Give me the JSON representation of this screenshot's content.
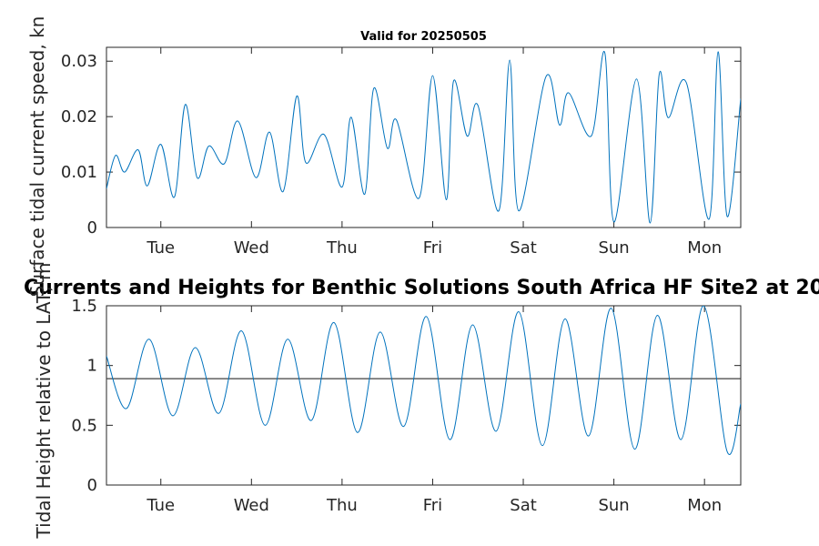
{
  "chart_data": [
    {
      "type": "line",
      "title": "Valid for 20250505",
      "ylabel": "Surface tidal current speed, kn",
      "ylim": [
        0,
        0.0325
      ],
      "xlim": [
        0,
        7
      ],
      "yticks": [
        0,
        0.01,
        0.02,
        0.03
      ],
      "ytick_labels": [
        "0",
        "0.01",
        "0.02",
        "0.03"
      ],
      "xticks": [
        0.6,
        1.6,
        2.6,
        3.6,
        4.6,
        5.6,
        6.6
      ],
      "xtick_labels": [
        "Tue",
        "Wed",
        "Thu",
        "Fri",
        "Sat",
        "Sun",
        "Mon"
      ],
      "series": [
        {
          "color": "#0072bd",
          "x": [
            0,
            0.1,
            0.2,
            0.35,
            0.45,
            0.6,
            0.75,
            0.87,
            1.0,
            1.13,
            1.3,
            1.45,
            1.65,
            1.8,
            1.95,
            2.1,
            2.2,
            2.4,
            2.6,
            2.7,
            2.85,
            2.95,
            3.1,
            3.2,
            3.45,
            3.6,
            3.75,
            3.83,
            3.98,
            4.1,
            4.33,
            4.45,
            4.55,
            4.85,
            5.0,
            5.1,
            5.35,
            5.5,
            5.6,
            5.85,
            6.0,
            6.1,
            6.2,
            6.4,
            6.65,
            6.75,
            6.85,
            7.0
          ],
          "y": [
            0.007,
            0.013,
            0.01,
            0.014,
            0.0075,
            0.015,
            0.0055,
            0.0222,
            0.009,
            0.0147,
            0.0115,
            0.0192,
            0.009,
            0.0172,
            0.0065,
            0.0237,
            0.0117,
            0.0168,
            0.0073,
            0.0199,
            0.006,
            0.0251,
            0.0143,
            0.0194,
            0.0053,
            0.0274,
            0.005,
            0.0264,
            0.0165,
            0.022,
            0.003,
            0.0302,
            0.003,
            0.0272,
            0.0185,
            0.0243,
            0.0165,
            0.0315,
            0.001,
            0.0268,
            0.0008,
            0.0276,
            0.0198,
            0.0261,
            0.0015,
            0.0317,
            0.002,
            0.0232
          ]
        }
      ]
    },
    {
      "type": "line",
      "title": "Currents and Heights for Benthic Solutions South Africa HF Site2 at 20",
      "ylabel": "Tidal Height relative to LAT, m",
      "ylim": [
        0,
        1.5
      ],
      "xlim": [
        0,
        7
      ],
      "yticks": [
        0,
        0.5,
        1,
        1.5
      ],
      "ytick_labels": [
        "0",
        "0.5",
        "1",
        "1.5"
      ],
      "xticks": [
        0.6,
        1.6,
        2.6,
        3.6,
        4.6,
        5.6,
        6.6
      ],
      "xtick_labels": [
        "Tue",
        "Wed",
        "Thu",
        "Fri",
        "Sat",
        "Sun",
        "Mon"
      ],
      "reference_line": 0.89,
      "series": [
        {
          "color": "#0072bd",
          "x": [
            0,
            0.22,
            0.47,
            0.73,
            0.98,
            1.24,
            1.49,
            1.75,
            2.0,
            2.26,
            2.51,
            2.77,
            3.02,
            3.28,
            3.53,
            3.79,
            4.04,
            4.3,
            4.55,
            4.81,
            5.06,
            5.32,
            5.57,
            5.83,
            6.08,
            6.34,
            6.59,
            6.85,
            7.0
          ],
          "y": [
            1.08,
            0.64,
            1.22,
            0.58,
            1.15,
            0.6,
            1.29,
            0.5,
            1.22,
            0.54,
            1.36,
            0.44,
            1.28,
            0.49,
            1.41,
            0.38,
            1.34,
            0.45,
            1.45,
            0.33,
            1.39,
            0.41,
            1.48,
            0.3,
            1.42,
            0.38,
            1.5,
            0.28,
            0.68
          ]
        }
      ]
    }
  ]
}
